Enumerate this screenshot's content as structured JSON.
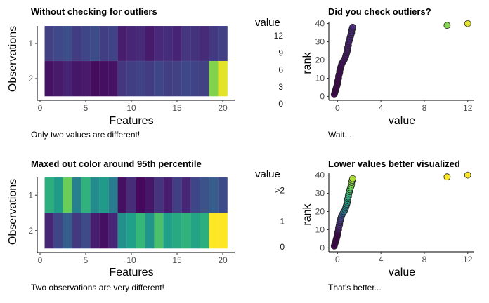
{
  "chart_data": [
    {
      "type": "heatmap",
      "title": "Without checking for outliers",
      "xlabel": "Features",
      "ylabel": "Observations",
      "x_ticks": [
        "0",
        "5",
        "10",
        "15",
        "20"
      ],
      "y_ticks": [
        "1",
        "2"
      ],
      "xlim": [
        0,
        21
      ],
      "color_range": [
        0,
        12.5
      ],
      "legend_title": "value",
      "legend_labels": [
        "12",
        "9",
        "6",
        "3",
        "0"
      ],
      "legend_values": [
        12,
        9,
        6,
        3,
        0
      ],
      "caption": "Only two values are different!",
      "rows": [
        {
          "name": "1",
          "values": [
            2.4,
            2.7,
            3.0,
            2.2,
            2.6,
            2.9,
            2.3,
            2.5,
            1.0,
            1.3,
            1.5,
            0.9,
            1.4,
            1.6,
            1.2,
            2.0,
            1.8,
            1.5,
            2.1,
            2.4
          ]
        },
        {
          "name": "2",
          "values": [
            0.6,
            0.9,
            1.2,
            0.8,
            0.9,
            0.4,
            0.5,
            0.6,
            2.0,
            2.3,
            2.5,
            2.2,
            2.6,
            2.3,
            2.4,
            2.7,
            2.5,
            2.4,
            10.1,
            12.0
          ]
        }
      ],
      "colors": {
        "low": "#440154",
        "mid": "#21908c",
        "high": "#fde725"
      }
    },
    {
      "type": "scatter",
      "title": "Did you check outliers?",
      "xlabel": "value",
      "ylabel": "rank",
      "x_ticks": [
        "0",
        "4",
        "8",
        "12"
      ],
      "y_ticks": [
        "0",
        "10",
        "20",
        "30",
        "40"
      ],
      "xlim": [
        -0.8,
        12.6
      ],
      "ylim": [
        -1,
        41
      ],
      "color_range": [
        0,
        12.5
      ],
      "caption": "Wait...",
      "x": [
        -0.3,
        -0.25,
        -0.2,
        -0.15,
        -0.1,
        -0.05,
        0.0,
        0.0,
        0.05,
        0.1,
        0.1,
        0.15,
        0.2,
        0.2,
        0.25,
        0.3,
        0.35,
        0.4,
        0.5,
        0.6,
        0.7,
        0.75,
        0.8,
        0.85,
        0.9,
        0.9,
        0.95,
        1.0,
        1.0,
        1.05,
        1.1,
        1.15,
        1.2,
        1.25,
        1.3,
        1.3,
        1.35,
        1.4,
        10.1,
        12.0
      ],
      "y": [
        1,
        2,
        3,
        4,
        5,
        6,
        7,
        8,
        9,
        10,
        11,
        12,
        13,
        14,
        15,
        16,
        17,
        18,
        19,
        20,
        21,
        22,
        23,
        24,
        25,
        26,
        27,
        28,
        29,
        30,
        31,
        32,
        33,
        34,
        35,
        36,
        37,
        38,
        39,
        40
      ]
    },
    {
      "type": "heatmap",
      "title": "Maxed out color around 95th percentile",
      "xlabel": "Features",
      "ylabel": "Observations",
      "x_ticks": [
        "0",
        "5",
        "10",
        "15",
        "20"
      ],
      "y_ticks": [
        "1",
        "2"
      ],
      "xlim": [
        0,
        21
      ],
      "color_range": [
        0,
        2.4
      ],
      "legend_title": "value",
      "legend_labels": [
        ">2",
        "1",
        "0"
      ],
      "legend_values": [
        2.2,
        1,
        0
      ],
      "caption": "Two observations are very different!",
      "rows": [
        {
          "name": "1",
          "values": [
            1.5,
            1.3,
            1.85,
            1.05,
            1.55,
            1.15,
            1.3,
            1.0,
            0.1,
            0.3,
            0.05,
            0.15,
            0.35,
            0.2,
            0.45,
            0.25,
            0.5,
            0.6,
            0.7,
            0.55
          ]
        },
        {
          "name": "2",
          "values": [
            0.25,
            0.5,
            0.7,
            0.4,
            0.55,
            0.2,
            0.1,
            0.25,
            1.2,
            1.35,
            1.6,
            1.25,
            1.7,
            1.35,
            1.45,
            1.55,
            1.4,
            1.5,
            2.4,
            2.4
          ]
        }
      ],
      "colors": {
        "low": "#440154",
        "mid": "#21908c",
        "high": "#fde725"
      }
    },
    {
      "type": "scatter",
      "title": "Lower values better visualized",
      "xlabel": "value",
      "ylabel": "rank",
      "x_ticks": [
        "0",
        "4",
        "8",
        "12"
      ],
      "y_ticks": [
        "0",
        "10",
        "20",
        "30",
        "40"
      ],
      "xlim": [
        -0.8,
        12.6
      ],
      "ylim": [
        -1,
        41
      ],
      "color_range": [
        0,
        1.6
      ],
      "caption": "That's better...",
      "x": [
        -0.3,
        -0.25,
        -0.2,
        -0.15,
        -0.1,
        -0.05,
        0.0,
        0.0,
        0.05,
        0.1,
        0.1,
        0.15,
        0.2,
        0.2,
        0.25,
        0.3,
        0.35,
        0.4,
        0.5,
        0.6,
        0.7,
        0.75,
        0.8,
        0.85,
        0.9,
        0.9,
        0.95,
        1.0,
        1.0,
        1.05,
        1.1,
        1.15,
        1.2,
        1.25,
        1.3,
        1.3,
        1.35,
        1.4,
        10.1,
        12.0
      ],
      "y": [
        1,
        2,
        3,
        4,
        5,
        6,
        7,
        8,
        9,
        10,
        11,
        12,
        13,
        14,
        15,
        16,
        17,
        18,
        19,
        20,
        21,
        22,
        23,
        24,
        25,
        26,
        27,
        28,
        29,
        30,
        31,
        32,
        33,
        34,
        35,
        36,
        37,
        38,
        39,
        40
      ]
    }
  ]
}
